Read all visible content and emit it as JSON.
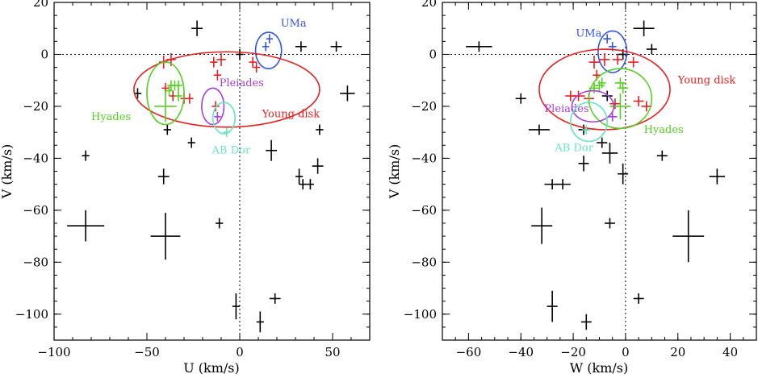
{
  "chart_data": [
    {
      "type": "scatter",
      "xlabel": "U (km/s)",
      "ylabel": "V (km/s)",
      "xlim": [
        -100,
        70
      ],
      "ylim": [
        -110,
        20
      ],
      "xticks": [
        -100,
        -50,
        0,
        50
      ],
      "yticks": [
        -100,
        -80,
        -60,
        -40,
        -20,
        0,
        20
      ],
      "zero_lines": true,
      "groups": [
        {
          "name": "UMa",
          "color": "#3355e6",
          "ellipse": {
            "cx": 15.5,
            "cy": 1.5,
            "rx": 7,
            "ry": 7
          },
          "label_at": [
            22,
            12
          ],
          "points": [
            [
              16,
              6,
              1.8,
              1.8
            ],
            [
              14,
              3,
              1.8,
              1.8
            ]
          ]
        },
        {
          "name": "Young disk",
          "color": "#e62020",
          "ellipse": {
            "cx": -7,
            "cy": -13.5,
            "rx": 50,
            "ry": 14.5
          },
          "label_at": [
            12,
            -23
          ],
          "points": [
            [
              -41,
              -3,
              2.5,
              2.5
            ],
            [
              -37,
              -2,
              2.5,
              2.5
            ],
            [
              -14,
              -3,
              2,
              2
            ],
            [
              -10,
              -2,
              2.5,
              2.5
            ],
            [
              -12,
              -8,
              2,
              2
            ],
            [
              -40,
              -13,
              2,
              2
            ],
            [
              -36,
              -16,
              2,
              2
            ],
            [
              -30,
              -17,
              2,
              2
            ],
            [
              -27,
              -17,
              2,
              2
            ],
            [
              -13,
              -20,
              2,
              2
            ],
            [
              7,
              -3,
              2,
              2
            ],
            [
              9,
              -5,
              2,
              2
            ]
          ]
        },
        {
          "name": "Hyades",
          "color": "#55d020",
          "ellipse": {
            "cx": -40,
            "cy": -15,
            "rx": 10,
            "ry": 12
          },
          "label_at": [
            -80,
            -24
          ],
          "points": [
            [
              -40,
              -20,
              6,
              6
            ],
            [
              -38,
              -14,
              2,
              2
            ],
            [
              -35,
              -12,
              2,
              2
            ],
            [
              -33,
              -12,
              2,
              2
            ],
            [
              -37,
              -12,
              2,
              2
            ],
            [
              -33,
              -16,
              2,
              2
            ]
          ]
        },
        {
          "name": "Pleiades",
          "color": "#a640dd",
          "ellipse": {
            "cx": -14.5,
            "cy": -20,
            "rx": 6,
            "ry": 7
          },
          "label_at": [
            -11,
            -11
          ],
          "points": [
            [
              -12,
              -24,
              1.8,
              1.8
            ]
          ]
        },
        {
          "name": "AB Dor",
          "color": "#66e6c0",
          "ellipse": {
            "cx": -8.5,
            "cy": -24.5,
            "rx": 6,
            "ry": 6
          },
          "label_at": [
            -15,
            -37
          ],
          "points": [
            [
              -7,
              -30,
              1.8,
              1.8
            ]
          ]
        }
      ],
      "field_points": [
        [
          -23,
          10,
          3,
          3
        ],
        [
          0,
          0,
          2,
          2
        ],
        [
          33,
          3,
          3,
          2
        ],
        [
          52,
          3,
          3,
          2
        ],
        [
          -55,
          -15,
          2,
          2
        ],
        [
          58,
          -15,
          4,
          3
        ],
        [
          -39,
          -29,
          2,
          2
        ],
        [
          43,
          -29,
          2,
          2
        ],
        [
          -26,
          -34,
          2,
          2
        ],
        [
          -83,
          -39,
          2,
          2
        ],
        [
          17,
          -37,
          3,
          4
        ],
        [
          32,
          -47,
          2,
          3
        ],
        [
          42,
          -43,
          3,
          3
        ],
        [
          34,
          -50,
          2,
          2
        ],
        [
          38,
          -50,
          2,
          2
        ],
        [
          -41,
          -47,
          3,
          3
        ],
        [
          -83,
          -66,
          10,
          6
        ],
        [
          -40,
          -70,
          8,
          9
        ],
        [
          -11,
          -65,
          2,
          2
        ],
        [
          -2,
          -97,
          2,
          5
        ],
        [
          19,
          -94,
          3,
          2
        ],
        [
          11,
          -103,
          2,
          4
        ]
      ]
    },
    {
      "type": "scatter",
      "xlabel": "W (km/s)",
      "ylabel": "V (km/s)",
      "xlim": [
        -70,
        50
      ],
      "ylim": [
        -110,
        20
      ],
      "xticks": [
        -60,
        -40,
        -20,
        0,
        20,
        40
      ],
      "yticks": [
        -100,
        -80,
        -60,
        -40,
        -20,
        0,
        20
      ],
      "zero_lines": true,
      "groups": [
        {
          "name": "UMa",
          "color": "#3355e6",
          "ellipse": {
            "cx": -5,
            "cy": 1,
            "rx": 5.5,
            "ry": 8
          },
          "label_at": [
            -19,
            8
          ],
          "points": [
            [
              -7,
              6,
              1.5,
              1.8
            ],
            [
              -5,
              3,
              1.5,
              1.8
            ]
          ]
        },
        {
          "name": "Young disk",
          "color": "#e62020",
          "ellipse": {
            "cx": -8,
            "cy": -13.5,
            "rx": 25,
            "ry": 15.5
          },
          "label_at": [
            20,
            -10
          ],
          "points": [
            [
              -12,
              -3,
              2,
              2.5
            ],
            [
              -8,
              -2,
              2,
              2.5
            ],
            [
              -3,
              -2,
              2,
              2
            ],
            [
              3,
              -3,
              2,
              2
            ],
            [
              -11,
              -8,
              1.5,
              2
            ],
            [
              -18,
              -16,
              2.5,
              2
            ],
            [
              -14,
              -17,
              2,
              2
            ],
            [
              -21,
              -16,
              2,
              2
            ],
            [
              -4,
              -19,
              2,
              2
            ],
            [
              5,
              -18,
              2,
              2
            ],
            [
              8,
              -20,
              2,
              2
            ]
          ]
        },
        {
          "name": "Hyades",
          "color": "#55d020",
          "ellipse": {
            "cx": -2,
            "cy": -17,
            "rx": 12,
            "ry": 11.5
          },
          "label_at": [
            7,
            -29
          ],
          "points": [
            [
              -2,
              -20,
              4,
              5
            ],
            [
              -10,
              -12,
              2,
              2
            ],
            [
              -12,
              -13,
              2,
              2
            ],
            [
              -9,
              -11,
              1.5,
              2
            ],
            [
              -2,
              -11,
              2,
              2
            ],
            [
              -1,
              -13,
              2,
              2
            ]
          ]
        },
        {
          "name": "Pleiades",
          "color": "#a640dd",
          "ellipse": {
            "cx": -12.5,
            "cy": -20,
            "rx": 8,
            "ry": 6
          },
          "label_at": [
            -31,
            -21
          ],
          "points": [
            [
              -5,
              -24,
              1.8,
              1.8
            ]
          ]
        },
        {
          "name": "AB Dor",
          "color": "#66e6c0",
          "ellipse": {
            "cx": -14,
            "cy": -26,
            "rx": 7,
            "ry": 7.5
          },
          "label_at": [
            -27,
            -36
          ],
          "points": [
            [
              -15,
              -29,
              1.5,
              1.8
            ]
          ]
        }
      ],
      "field_points": [
        [
          7,
          10,
          4,
          3
        ],
        [
          -56,
          3,
          5,
          2
        ],
        [
          10,
          2,
          2,
          2
        ],
        [
          -1,
          0,
          2,
          2
        ],
        [
          -7,
          -16,
          2,
          2
        ],
        [
          -40,
          -17,
          2,
          2
        ],
        [
          -16,
          -29,
          2,
          2
        ],
        [
          -33,
          -29,
          4,
          2
        ],
        [
          -9,
          -34,
          2,
          2
        ],
        [
          -6,
          -38,
          3,
          4
        ],
        [
          14,
          -39,
          2,
          2
        ],
        [
          -16,
          -42,
          2,
          3
        ],
        [
          -1,
          -46,
          2,
          4
        ],
        [
          35,
          -47,
          3,
          3
        ],
        [
          -28,
          -50,
          3,
          2
        ],
        [
          -24,
          -50,
          3,
          2
        ],
        [
          -6,
          -65,
          2,
          2
        ],
        [
          -32,
          -66,
          4,
          7
        ],
        [
          24,
          -70,
          6,
          10
        ],
        [
          -28,
          -97,
          2,
          6
        ],
        [
          5,
          -94,
          2,
          2
        ],
        [
          -15,
          -103,
          2,
          3
        ]
      ]
    }
  ]
}
